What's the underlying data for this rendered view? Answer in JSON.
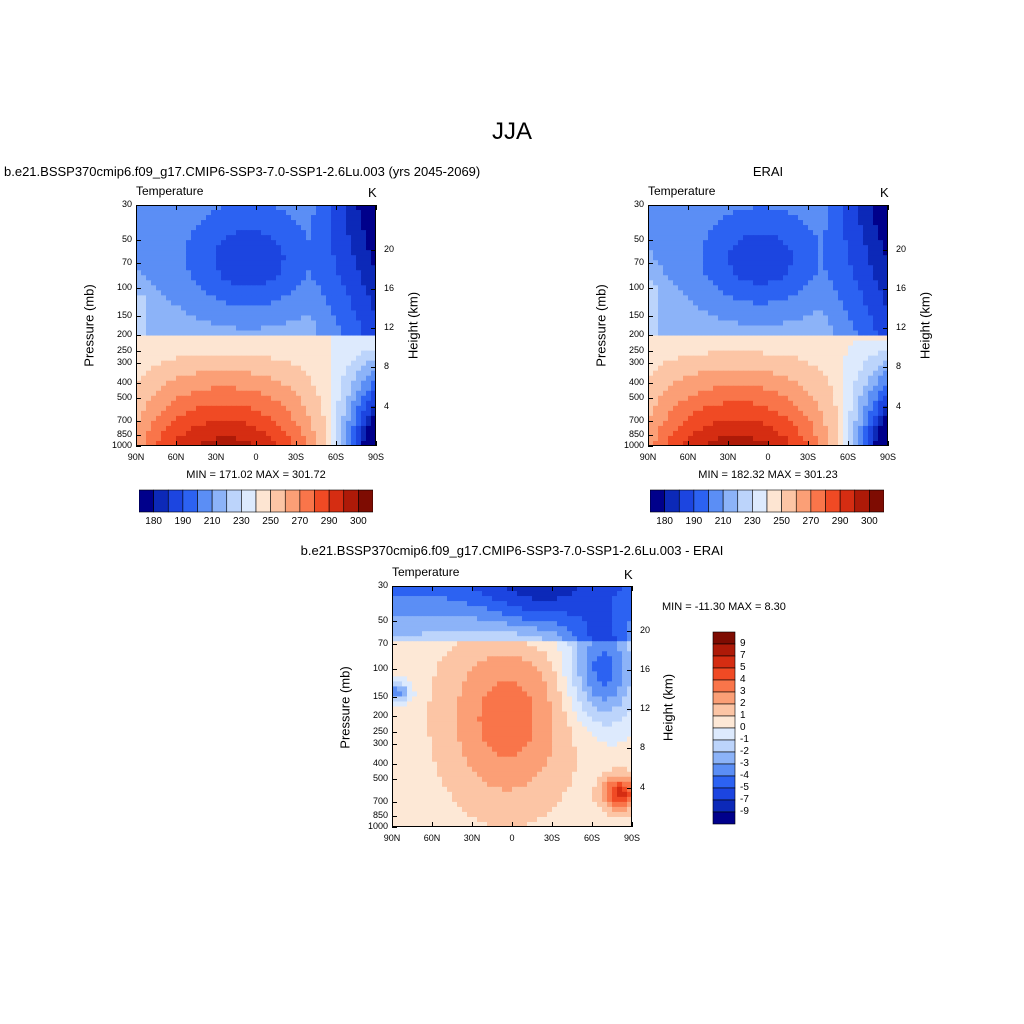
{
  "main_title": "JJA",
  "palette": [
    "#00008b",
    "#0c29b8",
    "#1c45e0",
    "#2c62f2",
    "#5b8ef5",
    "#8cb3f8",
    "#bcd4fb",
    "#ddeafd",
    "#fde5d2",
    "#fcc5a5",
    "#fb9f76",
    "#f9754a",
    "#f04a24",
    "#d52d12",
    "#ae1a08",
    "#7e0c02"
  ],
  "diff_palette": [
    "#00008b",
    "#0c29b8",
    "#1c45e0",
    "#2c62f2",
    "#5b8ef5",
    "#8cb3f8",
    "#bcd4fb",
    "#ddeafd",
    "#fde8d6",
    "#fcc5a5",
    "#fb9f76",
    "#f9754a",
    "#f04a24",
    "#d52d12",
    "#ae1a08",
    "#7e0c02"
  ],
  "panels": {
    "test": {
      "title": "b.e21.BSSP370cmip6.f09_g17.CMIP6-SSP3-7.0-SSP1-2.6Lu.003 (yrs 2045-2069)",
      "var": "Temperature",
      "units": "K",
      "stats": "MIN = 171.02  MAX = 301.72",
      "ylabel": "Pressure (mb)",
      "y2label": "Height (km)"
    },
    "ref": {
      "title": "ERAI",
      "var": "Temperature",
      "units": "K",
      "stats": "MIN = 182.32  MAX = 301.23",
      "ylabel": "Pressure (mb)",
      "y2label": "Height (km)"
    },
    "diff": {
      "title": "b.e21.BSSP370cmip6.f09_g17.CMIP6-SSP3-7.0-SSP1-2.6Lu.003 - ERAI",
      "var": "Temperature",
      "units": "K",
      "stats": "MIN = -11.30  MAX =   8.30",
      "ylabel": "Pressure (mb)",
      "y2label": "Height (km)"
    }
  },
  "chart_data": [
    {
      "type": "heatmap",
      "panel": "test",
      "x_ticks": [
        "90N",
        "60N",
        "30N",
        "0",
        "30S",
        "60S",
        "90S"
      ],
      "y_ticks": [
        "30",
        "50",
        "70",
        "100",
        "150",
        "200",
        "250",
        "300",
        "400",
        "500",
        "700",
        "850",
        "1000"
      ],
      "y2_ticks": [
        "20",
        "16",
        "12",
        "8",
        "4"
      ],
      "colorbar_ticks": [
        "180",
        "190",
        "210",
        "230",
        "250",
        "270",
        "290",
        "300"
      ],
      "levels": [
        180,
        185,
        190,
        200,
        210,
        220,
        230,
        240,
        250,
        260,
        270,
        280,
        290,
        295,
        300
      ],
      "ylim": [
        1000,
        30
      ]
    },
    {
      "type": "heatmap",
      "panel": "ref",
      "x_ticks": [
        "90N",
        "60N",
        "30N",
        "0",
        "30S",
        "60S",
        "90S"
      ],
      "y_ticks": [
        "30",
        "50",
        "70",
        "100",
        "150",
        "200",
        "250",
        "300",
        "400",
        "500",
        "700",
        "850",
        "1000"
      ],
      "y2_ticks": [
        "20",
        "16",
        "12",
        "8",
        "4"
      ],
      "colorbar_ticks": [
        "180",
        "190",
        "210",
        "230",
        "250",
        "270",
        "290",
        "300"
      ],
      "levels": [
        180,
        185,
        190,
        200,
        210,
        220,
        230,
        240,
        250,
        260,
        270,
        280,
        290,
        295,
        300
      ],
      "ylim": [
        1000,
        30
      ]
    },
    {
      "type": "heatmap",
      "panel": "diff",
      "x_ticks": [
        "90N",
        "60N",
        "30N",
        "0",
        "30S",
        "60S",
        "90S"
      ],
      "y_ticks": [
        "30",
        "50",
        "70",
        "100",
        "150",
        "200",
        "250",
        "300",
        "400",
        "500",
        "700",
        "850",
        "1000"
      ],
      "y2_ticks": [
        "20",
        "16",
        "12",
        "8",
        "4"
      ],
      "colorbar_ticks": [
        "9",
        "7",
        "5",
        "4",
        "3",
        "2",
        "1",
        "0",
        "-1",
        "-2",
        "-3",
        "-4",
        "-5",
        "-7",
        "-9"
      ],
      "levels": [
        -9,
        -7,
        -5,
        -4,
        -3,
        -2,
        -1,
        0,
        1,
        2,
        3,
        4,
        5,
        7,
        9
      ],
      "ylim": [
        1000,
        30
      ]
    }
  ]
}
